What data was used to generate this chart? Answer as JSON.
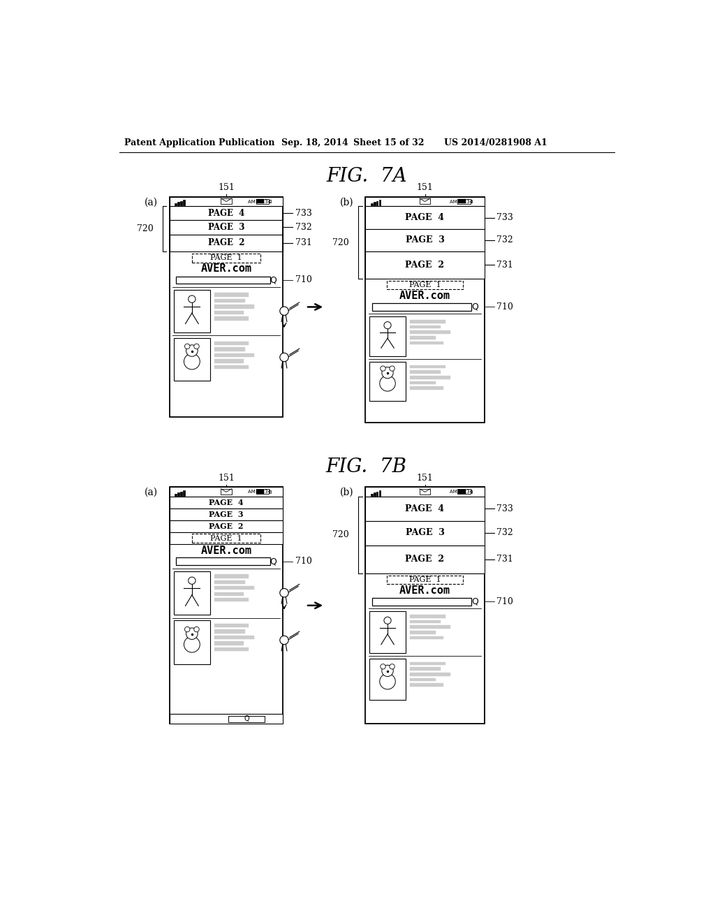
{
  "bg_color": "#ffffff",
  "header_text": "Patent Application Publication",
  "header_date": "Sep. 18, 2014",
  "header_sheet": "Sheet 15 of 32",
  "header_patent": "US 2014/0281908 A1",
  "fig7a_title": "FIG.  7A",
  "fig7b_title": "FIG.  7B"
}
